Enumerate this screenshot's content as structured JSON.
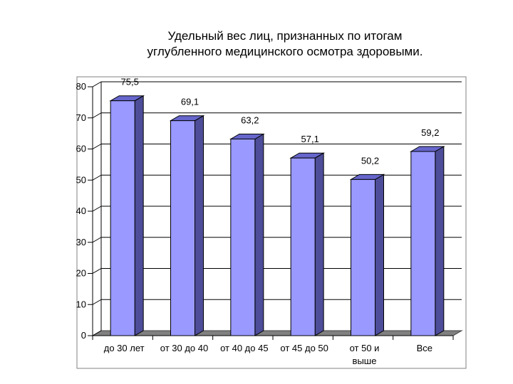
{
  "chart_data": {
    "type": "bar",
    "title": "Удельный вес лиц, признанных по итогам углубленного медицинского осмотра здоровыми.",
    "title_lines": [
      "Удельный вес лиц, признанных по итогам",
      "углубленного медицинского осмотра здоровыми."
    ],
    "categories": [
      [
        "до 30 лет"
      ],
      [
        "от 30 до 40"
      ],
      [
        "от 40 до 45"
      ],
      [
        "от 45 до 50"
      ],
      [
        "от 50 и",
        "выше"
      ],
      [
        "Все"
      ]
    ],
    "values": [
      75.5,
      69.1,
      63.2,
      57.1,
      50.2,
      59.2
    ],
    "value_labels": [
      "75,5",
      "69,1",
      "63,2",
      "57,1",
      "50,2",
      "59,2"
    ],
    "ylim": [
      0,
      80
    ],
    "yticks": [
      "0",
      "10",
      "20",
      "30",
      "40",
      "50",
      "60",
      "70",
      "80"
    ],
    "grid": true,
    "legend": "none",
    "bar_color": "#9999ff",
    "bar_side_color": "#4d4d99",
    "bar_top_color": "#6666cc"
  }
}
